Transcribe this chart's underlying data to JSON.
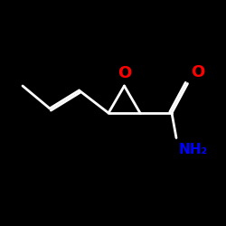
{
  "background_color": "#000000",
  "line_color": "#ffffff",
  "O_color": "#ff0000",
  "NH2_color": "#0000ff",
  "figsize": [
    2.5,
    2.5
  ],
  "dpi": 100,
  "lw": 2.0,
  "off": 0.1,
  "xlim": [
    0,
    10
  ],
  "ylim": [
    1,
    9
  ]
}
